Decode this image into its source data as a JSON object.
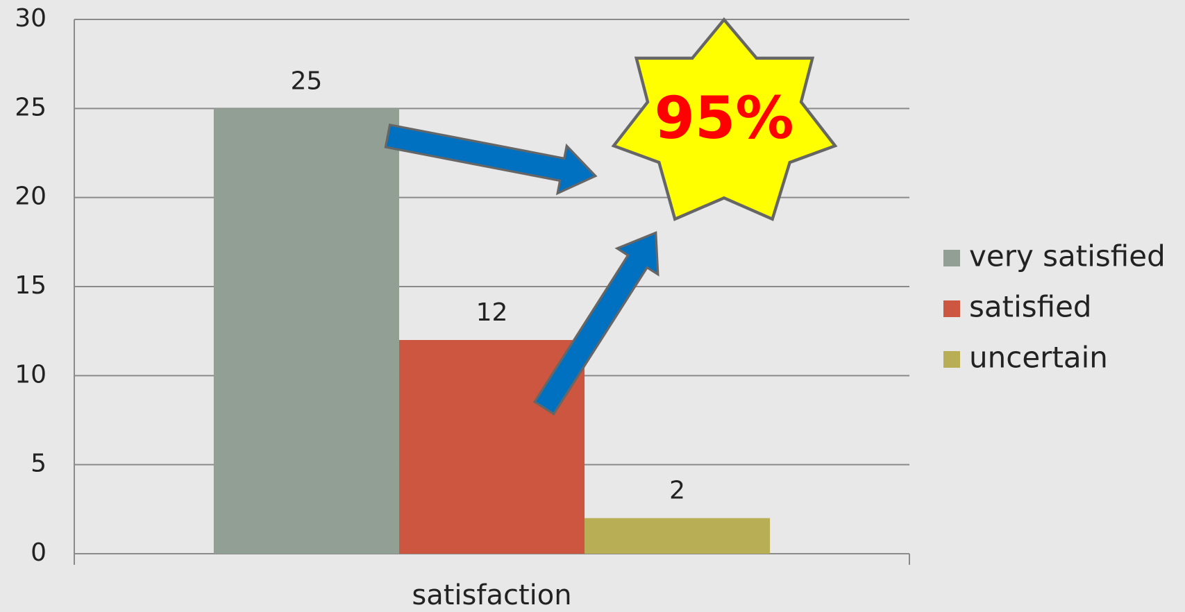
{
  "chart_data": {
    "type": "bar",
    "categories": [
      "satisfaction"
    ],
    "series": [
      {
        "name": "very satisfied",
        "color": "#919f94",
        "values": [
          25
        ]
      },
      {
        "name": "satisfied",
        "color": "#cd5640",
        "values": [
          12
        ]
      },
      {
        "name": "uncertain",
        "color": "#b7ae55",
        "values": [
          2
        ]
      }
    ],
    "ylim": [
      0,
      30
    ],
    "yticks": [
      0,
      5,
      10,
      15,
      20,
      25,
      30
    ],
    "grid": true,
    "legend": "right",
    "annotation": "95%"
  }
}
